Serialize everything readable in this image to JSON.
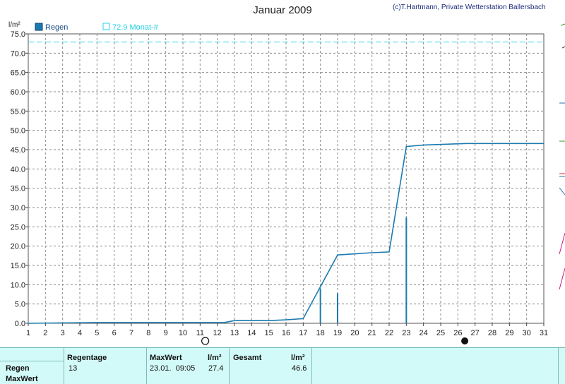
{
  "title": "Januar 2009",
  "copyright": "(c)T.Hartmann, Private Wetterstation Ballersbach",
  "chart_data": {
    "type": "line",
    "ylabel": "l/m²",
    "xlabel": "",
    "xlim": [
      1,
      31
    ],
    "ylim": [
      0,
      75
    ],
    "x_ticks": [
      "1",
      "2",
      "3",
      "4",
      "5",
      "6",
      "7",
      "8",
      "9",
      "10",
      "11",
      "12",
      "13",
      "14",
      "15",
      "16",
      "17",
      "18",
      "19",
      "20",
      "21",
      "22",
      "23",
      "24",
      "25",
      "26",
      "27",
      "28",
      "29",
      "30",
      "31"
    ],
    "y_ticks": [
      "0.0",
      "5.0",
      "10.0",
      "15.0",
      "20.0",
      "25.0",
      "30.0",
      "35.0",
      "40.0",
      "45.0",
      "50.0",
      "55.0",
      "60.0",
      "65.0",
      "70.0",
      "75.0"
    ],
    "grid": true,
    "legend_position": "top-left",
    "legend": [
      {
        "label": "Regen",
        "color": "#1b7ab0"
      },
      {
        "label": "72.9 Monat-#",
        "color": "#22d3e8"
      }
    ],
    "series": [
      {
        "name": "Regen",
        "color": "#1b7ab0",
        "x": [
          1,
          5,
          12.4,
          13,
          15,
          16,
          17,
          18,
          19,
          21,
          22,
          23,
          24,
          26.5,
          31
        ],
        "y": [
          0,
          0.2,
          0.2,
          0.7,
          0.7,
          0.9,
          1.2,
          9.5,
          17.7,
          18.3,
          18.5,
          45.8,
          46.2,
          46.6,
          46.6
        ]
      }
    ],
    "daily_bars": {
      "color": "#1b7ab0",
      "x": [
        18,
        19,
        23
      ],
      "y": [
        9.0,
        7.8,
        27.4
      ]
    },
    "reference_line": {
      "label": "72.9 Monat-#",
      "value": 72.9,
      "color": "#22d3e8",
      "style": "dashed"
    },
    "moon_markers": [
      {
        "day": 11.3,
        "phase": "full-moon"
      },
      {
        "day": 26.4,
        "phase": "new-moon"
      }
    ]
  },
  "stats": {
    "rows": [
      "Regen",
      "MaxWert"
    ],
    "regentage_header": "Regentage",
    "regentage_value": "13",
    "maxwert_header": "MaxWert",
    "maxwert_unit": "l/m²",
    "maxwert_time": "23.01.  09:05",
    "maxwert_value": "27.4",
    "gesamt_header": "Gesamt",
    "gesamt_unit": "l/m²",
    "gesamt_value": "46.6"
  }
}
